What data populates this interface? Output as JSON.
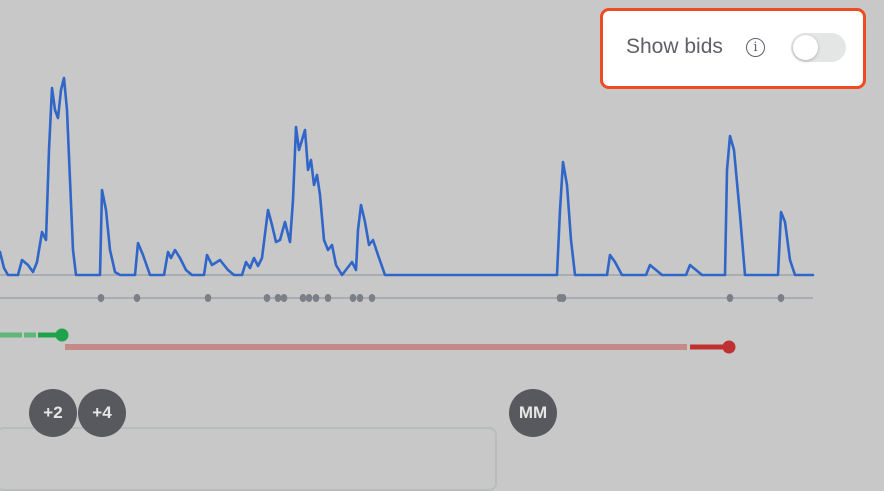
{
  "bids_toggle": {
    "label": "Show bids",
    "info_icon": "info-icon",
    "enabled": false,
    "highlight_color": "#f04a23"
  },
  "chart": {
    "line_color": "#2f66c8",
    "baseline_color": "#8a8f99",
    "marker_color": "#7a7f88"
  },
  "ranges": {
    "green_color": "#1fa34a",
    "red_color": "#c03030",
    "red_light_color": "#c48a8a"
  },
  "avatars": [
    {
      "label": "+2"
    },
    {
      "label": "+4"
    },
    {
      "label": "MM"
    }
  ]
}
